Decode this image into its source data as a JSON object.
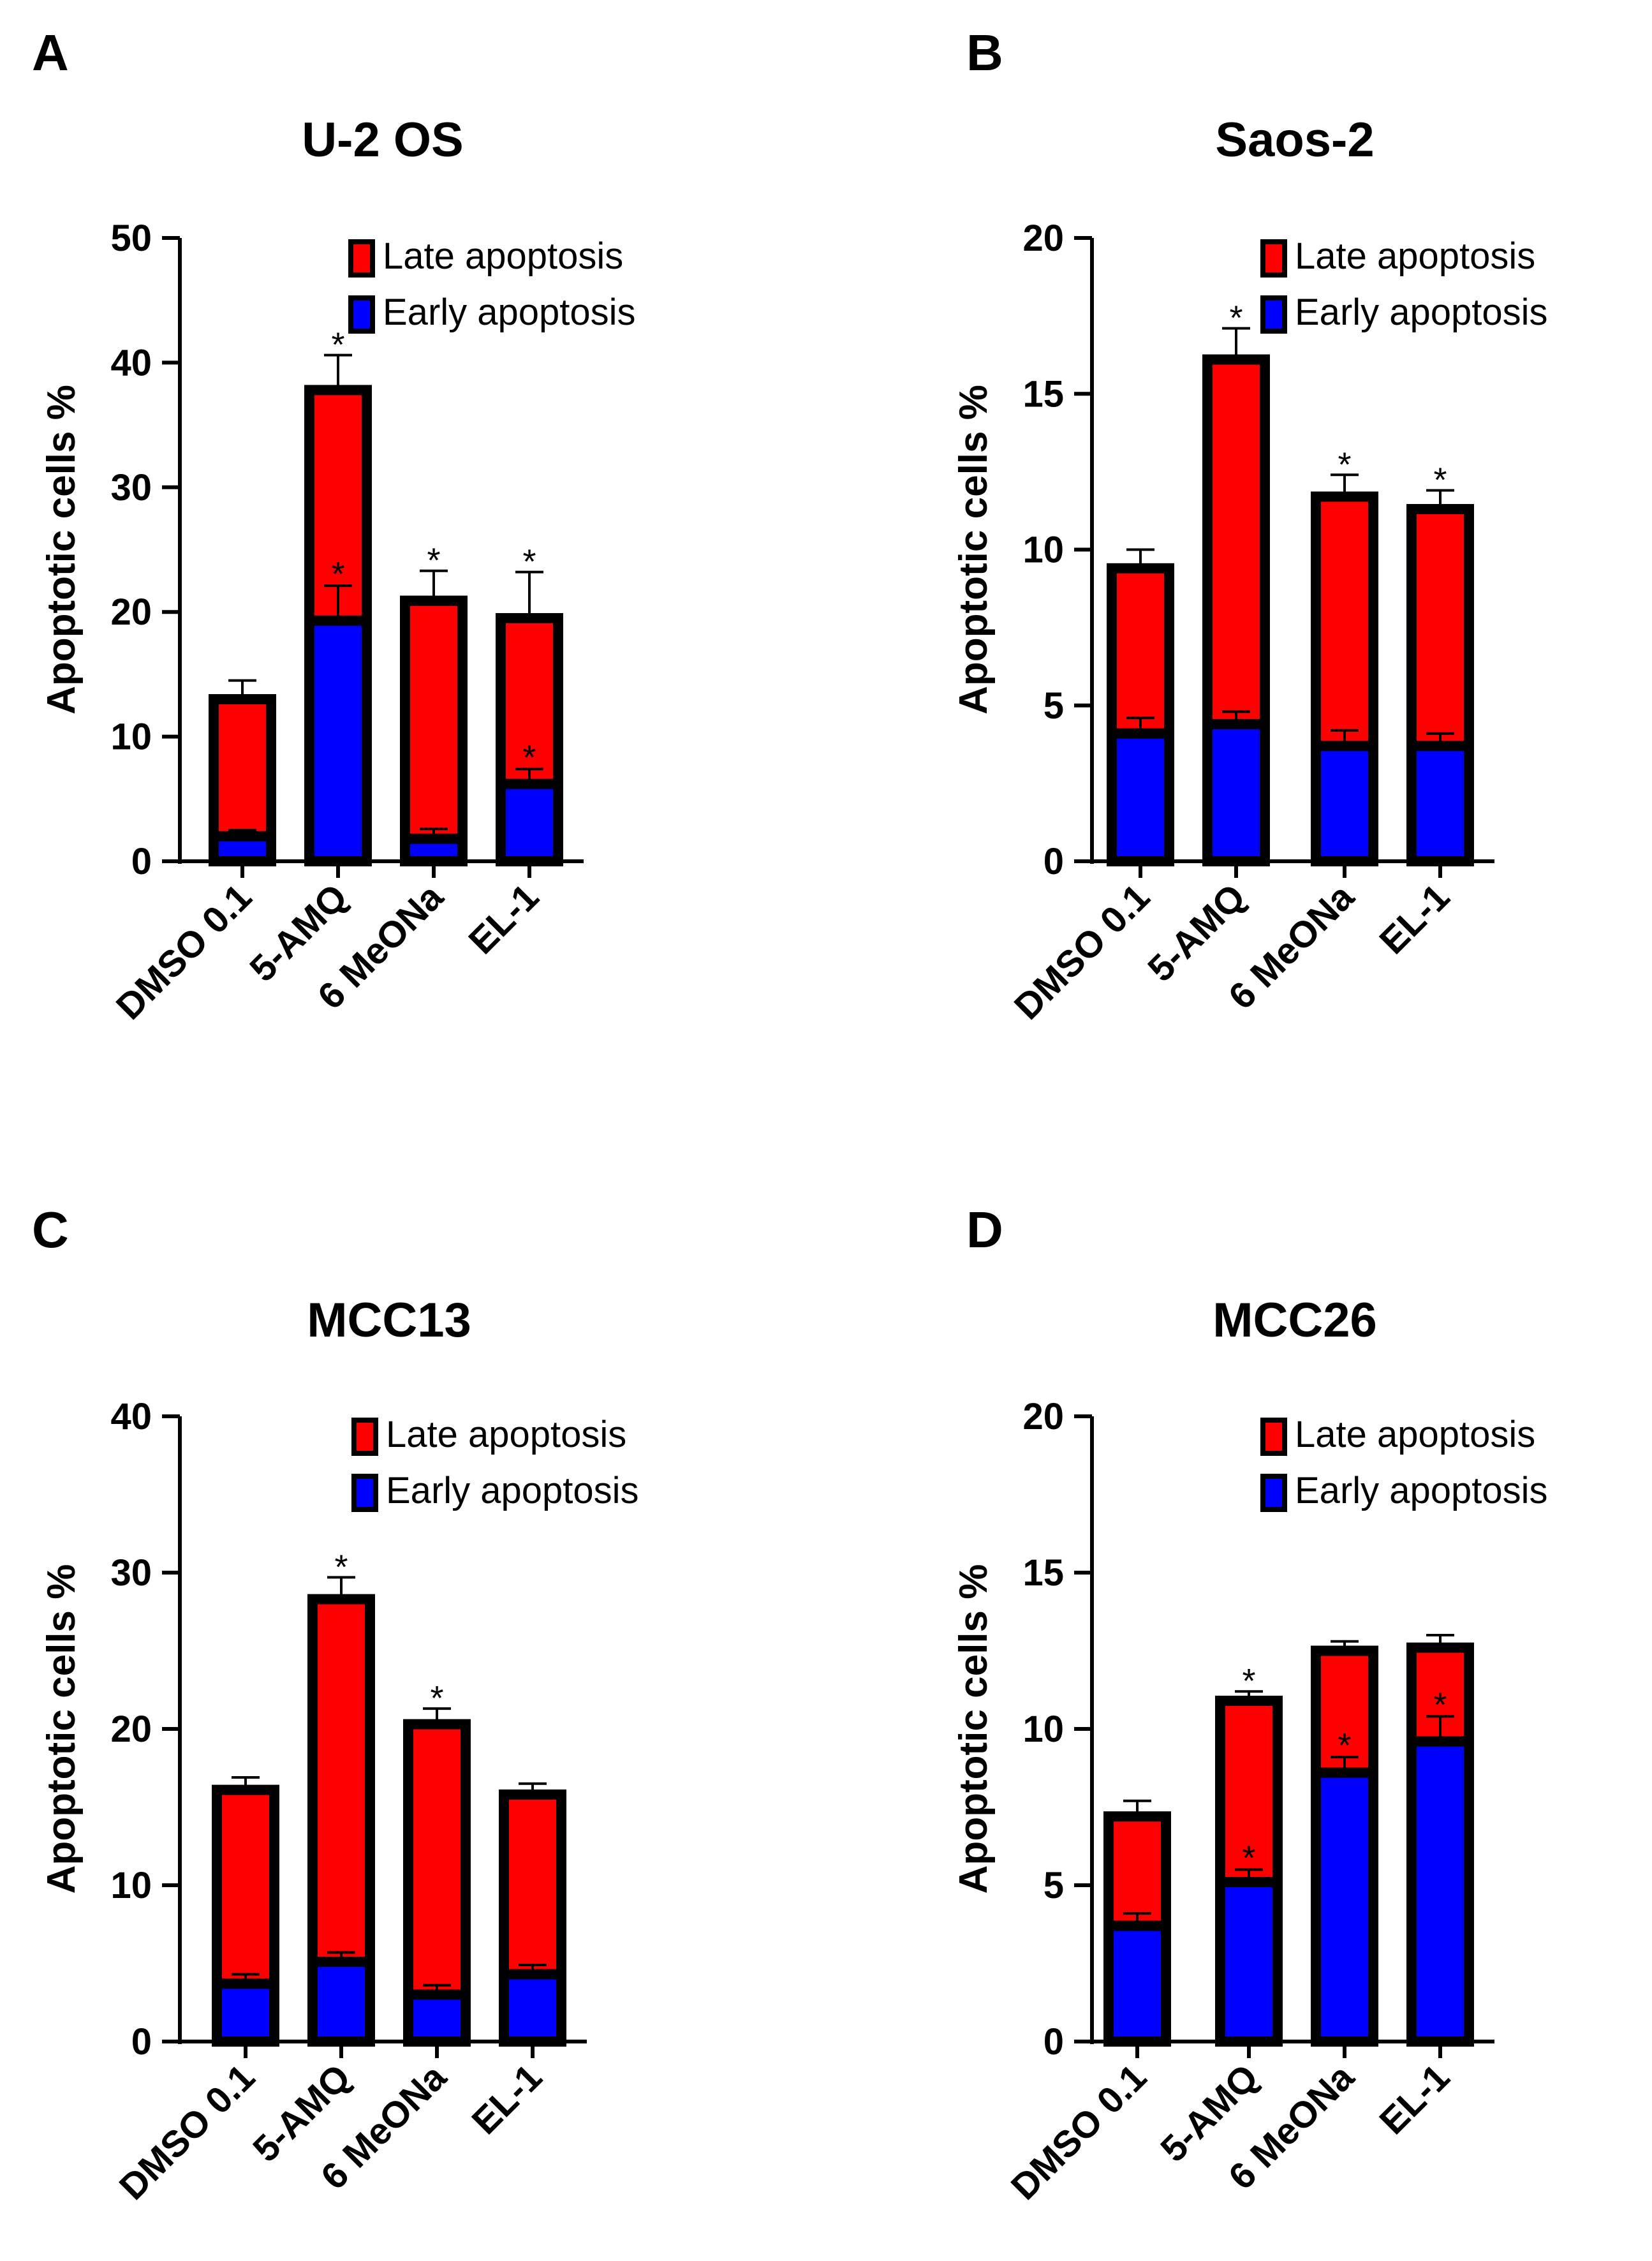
{
  "chart_data": [
    {
      "panel_label": "A",
      "type": "bar",
      "stacked": true,
      "title": "U-2 OS",
      "xlabel": "",
      "ylabel": "Apoptotic cells %",
      "ylim": [
        0,
        50
      ],
      "yticks": [
        "0",
        "10",
        "20",
        "30",
        "40",
        "50"
      ],
      "categories": [
        "DMSO 0.1",
        "5-AMQ",
        "6 MeONa",
        "EL-1"
      ],
      "series": [
        {
          "name": "Early apoptosis",
          "color": "#0000ff",
          "values": [
            2.0,
            19.3,
            1.8,
            6.2
          ],
          "errors": [
            0.5,
            2.8,
            0.8,
            1.2
          ]
        },
        {
          "name": "Late apoptosis",
          "color": "#ff0000",
          "values": [
            11.0,
            18.5,
            19.1,
            13.3
          ],
          "errors": [
            1.5,
            2.8,
            2.4,
            3.7
          ]
        }
      ],
      "legend": [
        "Late apoptosis",
        "Early apoptosis"
      ],
      "stars": [
        {
          "category": "5-AMQ",
          "series": "Late apoptosis",
          "text": "*"
        },
        {
          "category": "5-AMQ",
          "series": "Early apoptosis",
          "text": "*"
        },
        {
          "category": "6 MeONa",
          "series": "Late apoptosis",
          "text": "*"
        },
        {
          "category": "EL-1",
          "series": "Late apoptosis",
          "text": "*"
        },
        {
          "category": "EL-1",
          "series": "Early apoptosis",
          "text": "*"
        }
      ]
    },
    {
      "panel_label": "B",
      "type": "bar",
      "stacked": true,
      "title": "Saos-2",
      "xlabel": "",
      "ylabel": "Apoptotic cells %",
      "ylim": [
        0,
        20
      ],
      "yticks": [
        "0",
        "5",
        "10",
        "15",
        "20"
      ],
      "categories": [
        "DMSO 0.1",
        "5-AMQ",
        "6 MeONa",
        "EL-1"
      ],
      "series": [
        {
          "name": "Early apoptosis",
          "color": "#0000ff",
          "values": [
            4.1,
            4.4,
            3.7,
            3.7
          ],
          "errors": [
            0.5,
            0.4,
            0.5,
            0.4
          ]
        },
        {
          "name": "Late apoptosis",
          "color": "#ff0000",
          "values": [
            5.3,
            11.7,
            8.0,
            7.6
          ],
          "errors": [
            0.6,
            1.0,
            0.7,
            0.6
          ]
        }
      ],
      "legend": [
        "Late apoptosis",
        "Early apoptosis"
      ],
      "stars": [
        {
          "category": "5-AMQ",
          "series": "Late apoptosis",
          "text": "*"
        },
        {
          "category": "6 MeONa",
          "series": "Late apoptosis",
          "text": "*"
        },
        {
          "category": "EL-1",
          "series": "Late apoptosis",
          "text": "*"
        }
      ]
    },
    {
      "panel_label": "C",
      "type": "bar",
      "stacked": true,
      "title": "MCC13",
      "xlabel": "",
      "ylabel": "Apoptotic cells %",
      "ylim": [
        0,
        40
      ],
      "yticks": [
        "0",
        "10",
        "20",
        "30",
        "40"
      ],
      "categories": [
        "DMSO 0.1",
        "5-AMQ",
        "6 MeONa",
        "EL-1"
      ],
      "series": [
        {
          "name": "Early apoptosis",
          "color": "#0000ff",
          "values": [
            3.7,
            5.1,
            3.0,
            4.3
          ],
          "errors": [
            0.6,
            0.6,
            0.6,
            0.6
          ]
        },
        {
          "name": "Late apoptosis",
          "color": "#ff0000",
          "values": [
            12.4,
            23.2,
            17.3,
            11.5
          ],
          "errors": [
            0.8,
            1.4,
            1.0,
            0.7
          ]
        }
      ],
      "legend": [
        "Late apoptosis",
        "Early apoptosis"
      ],
      "stars": [
        {
          "category": "5-AMQ",
          "series": "Late apoptosis",
          "text": "*"
        },
        {
          "category": "6 MeONa",
          "series": "Late apoptosis",
          "text": "*"
        }
      ]
    },
    {
      "panel_label": "D",
      "type": "bar",
      "stacked": true,
      "title": "MCC26",
      "xlabel": "",
      "ylabel": "Apoptotic cells %",
      "ylim": [
        0,
        20
      ],
      "yticks": [
        "0",
        "5",
        "10",
        "15",
        "20"
      ],
      "categories": [
        "DMSO 0.1",
        "5-AMQ",
        "6 MeONa",
        "EL-1"
      ],
      "series": [
        {
          "name": "Early apoptosis",
          "color": "#0000ff",
          "values": [
            3.7,
            5.1,
            8.6,
            9.6
          ],
          "errors": [
            0.4,
            0.4,
            0.5,
            0.8
          ]
        },
        {
          "name": "Late apoptosis",
          "color": "#ff0000",
          "values": [
            3.5,
            5.8,
            3.9,
            3.0
          ],
          "errors": [
            0.5,
            0.3,
            0.3,
            0.4
          ]
        }
      ],
      "legend": [
        "Late apoptosis",
        "Early apoptosis"
      ],
      "stars": [
        {
          "category": "5-AMQ",
          "series": "Late apoptosis",
          "text": "*"
        },
        {
          "category": "5-AMQ",
          "series": "Early apoptosis",
          "text": "*"
        },
        {
          "category": "6 MeONa",
          "series": "Early apoptosis",
          "text": "*"
        },
        {
          "category": "EL-1",
          "series": "Early apoptosis",
          "text": "*"
        }
      ]
    }
  ]
}
